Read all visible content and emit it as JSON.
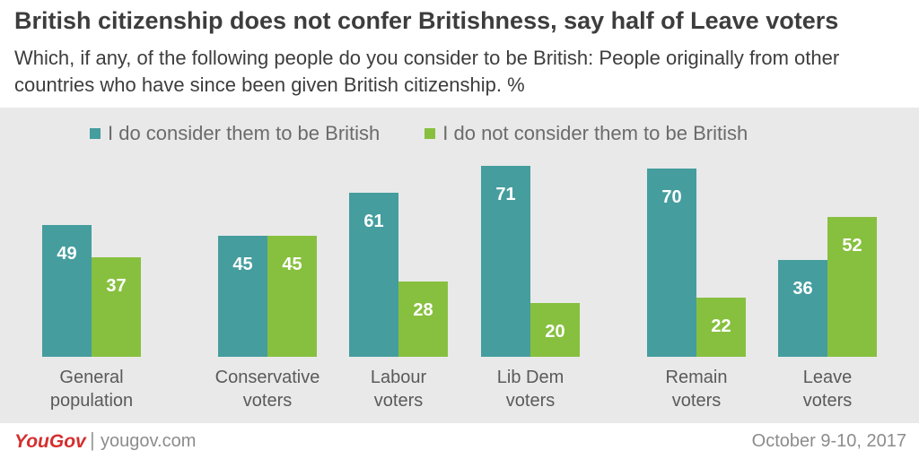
{
  "title": "British citizenship does not confer Britishness, say half of Leave voters",
  "subtitle": "Which, if any, of the following people do you consider to be British: People originally from other countries who have since been given British citizenship. %",
  "footer": {
    "logo": "YouGov",
    "separator": "|",
    "site": "yougov.com",
    "date": "October 9-10, 2017"
  },
  "colors": {
    "consider": "#459d9e",
    "not_consider": "#87c03f",
    "background": "#e9e9e9",
    "text": "#3d3d3d"
  },
  "chart_data": {
    "type": "bar",
    "categories": [
      [
        "General",
        "population"
      ],
      [
        "Conservative",
        "voters"
      ],
      [
        "Labour",
        "voters"
      ],
      [
        "Lib Dem",
        "voters"
      ],
      [
        "Remain",
        "voters"
      ],
      [
        "Leave",
        "voters"
      ]
    ],
    "series": [
      {
        "name": "I do consider them to be British",
        "color": "#459d9e",
        "values": [
          49,
          45,
          61,
          71,
          70,
          36
        ]
      },
      {
        "name": "I do not consider them to be British",
        "color": "#87c03f",
        "values": [
          37,
          45,
          28,
          20,
          22,
          52
        ]
      }
    ],
    "ylim": [
      0,
      100
    ],
    "grid": false,
    "legend": "top-center",
    "data_labels": true
  }
}
